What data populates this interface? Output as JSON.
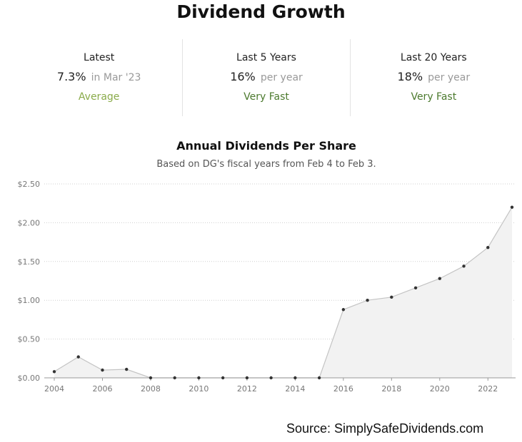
{
  "title": "Dividend Growth",
  "stats": [
    {
      "label": "Latest",
      "value": "7.3%",
      "suffix": "in Mar '23",
      "rating": "Average",
      "rating_color": "#8aab4a"
    },
    {
      "label": "Last 5 Years",
      "value": "16%",
      "suffix": "per year",
      "rating": "Very Fast",
      "rating_color": "#4c7a2e"
    },
    {
      "label": "Last 20 Years",
      "value": "18%",
      "suffix": "per year",
      "rating": "Very Fast",
      "rating_color": "#4c7a2e"
    }
  ],
  "source": "Source: SimplySafeDividends.com",
  "chart_data": {
    "type": "area",
    "title": "Annual Dividends Per Share",
    "subtitle": "Based on DG's fiscal years from Feb 4 to Feb 3.",
    "x": [
      2004,
      2005,
      2006,
      2007,
      2008,
      2009,
      2010,
      2011,
      2012,
      2013,
      2014,
      2015,
      2016,
      2017,
      2018,
      2019,
      2020,
      2021,
      2022,
      2023
    ],
    "values": [
      0.08,
      0.27,
      0.1,
      0.11,
      0,
      0,
      0,
      0,
      0,
      0,
      0,
      0,
      0.88,
      1.0,
      1.04,
      1.16,
      1.28,
      1.44,
      1.68,
      2.2
    ],
    "ylim": [
      0,
      2.5
    ],
    "yticks": [
      0,
      0.5,
      1,
      1.5,
      2,
      2.5
    ],
    "ytick_labels": [
      "$0.00",
      "$0.50",
      "$1.00",
      "$1.50",
      "$2.00",
      "$2.50"
    ],
    "xticks": [
      2004,
      2006,
      2008,
      2010,
      2012,
      2014,
      2016,
      2018,
      2020,
      2022
    ],
    "grid": true,
    "fill_color": "#f2f2f2",
    "line_color": "#c4c4c4",
    "point_color": "#333333"
  }
}
